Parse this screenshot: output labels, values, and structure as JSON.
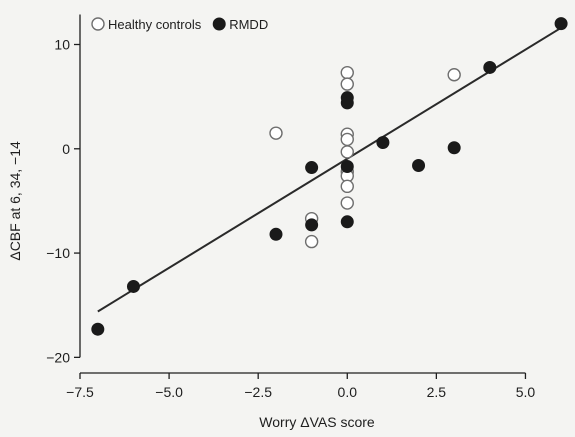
{
  "chart_data": {
    "type": "scatter",
    "title": "",
    "xlabel": "Worry ΔVAS score",
    "ylabel": "ΔCBF at 6, 34, −14",
    "xlim": [
      -7.5,
      6.25
    ],
    "ylim": [
      -21.5,
      13.5
    ],
    "x_ticks": [
      -7.5,
      -5.0,
      -2.5,
      0.0,
      2.5,
      5.0
    ],
    "x_tick_labels": [
      "−7.5",
      "−5.0",
      "−2.5",
      "0.0",
      "2.5",
      "5.0"
    ],
    "y_ticks": [
      10,
      0,
      -10,
      -20
    ],
    "y_tick_labels": [
      "10",
      "0",
      "−10",
      "−20"
    ],
    "grid": false,
    "legend_position": "top-left",
    "series": [
      {
        "name": "Healthy controls",
        "marker": "open-circle",
        "points": [
          [
            0,
            7.3
          ],
          [
            0,
            6.2
          ],
          [
            0,
            1.4
          ],
          [
            0,
            0.9
          ],
          [
            0,
            -0.3
          ],
          [
            0,
            -2.2
          ],
          [
            0,
            -2.6
          ],
          [
            0,
            -3.6
          ],
          [
            0,
            -5.2
          ],
          [
            -2,
            1.5
          ],
          [
            -1,
            -6.7
          ],
          [
            -1,
            -8.9
          ],
          [
            3,
            7.1
          ]
        ]
      },
      {
        "name": "RMDD",
        "marker": "filled-circle",
        "points": [
          [
            -7,
            -17.3
          ],
          [
            -6,
            -13.2
          ],
          [
            -2,
            -8.2
          ],
          [
            -1,
            -1.8
          ],
          [
            -1,
            -7.3
          ],
          [
            0,
            4.9
          ],
          [
            0,
            4.4
          ],
          [
            0,
            -1.7
          ],
          [
            0,
            -7.0
          ],
          [
            1,
            0.6
          ],
          [
            2,
            -1.6
          ],
          [
            3,
            0.1
          ],
          [
            4,
            7.8
          ],
          [
            6,
            12.0
          ]
        ]
      }
    ],
    "fit_line": {
      "x": [
        -7,
        6
      ],
      "y": [
        -15.6,
        11.6
      ]
    },
    "colors": {
      "marker_fill": "#1a1a1a",
      "marker_stroke": "#1a1a1a",
      "open_marker_fill": "#ffffff",
      "open_marker_stroke": "#6e6e6e",
      "line": "#2a2a2a",
      "axis": "#1e1e1e"
    }
  }
}
